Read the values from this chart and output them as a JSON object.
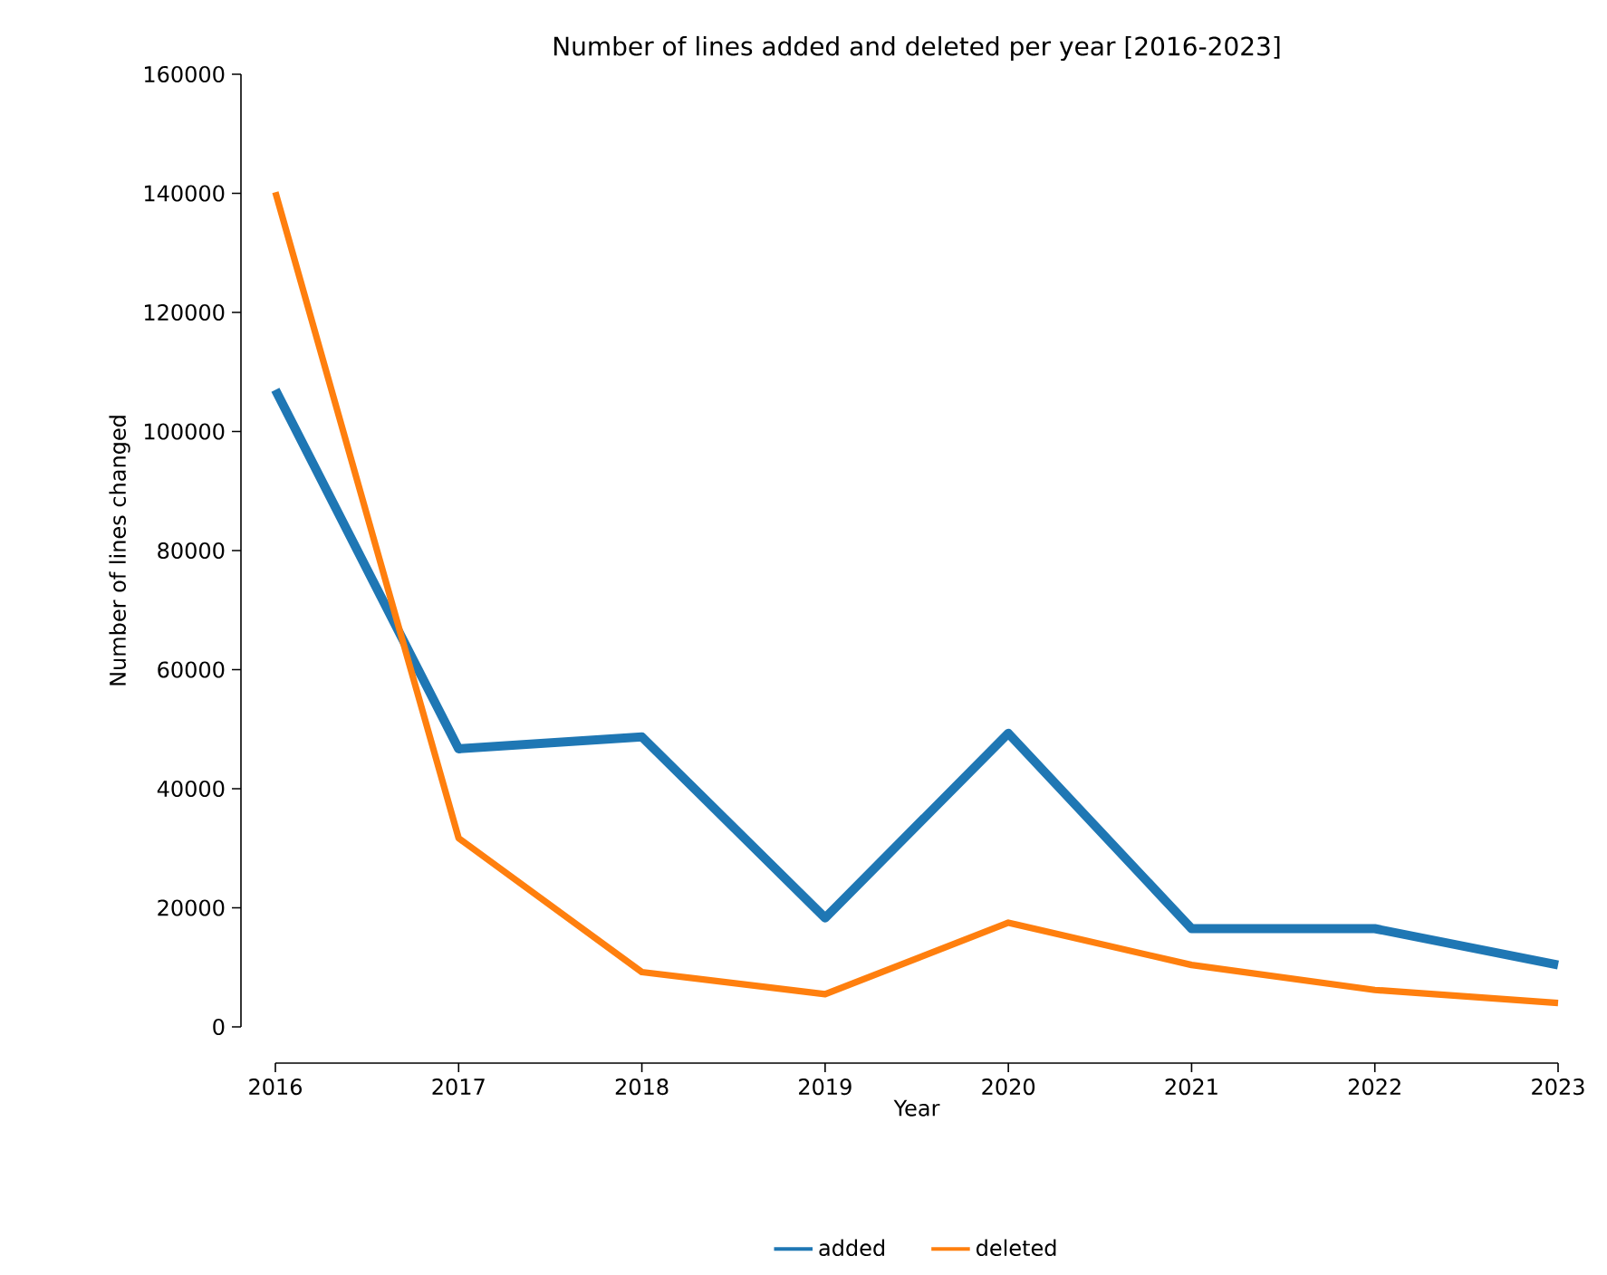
{
  "chart_data": {
    "type": "line",
    "title": "Number of lines added and deleted per year [2016-2023]",
    "xlabel": "Year",
    "ylabel": "Number of lines changed",
    "x": [
      2016,
      2017,
      2018,
      2019,
      2020,
      2021,
      2022,
      2023
    ],
    "series": [
      {
        "name": "added",
        "color": "#1f77b4",
        "values": [
          107000,
          46700,
          48700,
          18300,
          49300,
          16500,
          16500,
          10400
        ]
      },
      {
        "name": "deleted",
        "color": "#ff7f0e",
        "values": [
          140200,
          31700,
          9200,
          5500,
          17500,
          10400,
          6200,
          4000
        ]
      }
    ],
    "xlim": [
      2016,
      2023
    ],
    "xticks": [
      2016,
      2017,
      2018,
      2019,
      2020,
      2021,
      2022,
      2023
    ],
    "ylim": [
      0,
      160000
    ],
    "yticks": [
      0,
      20000,
      40000,
      60000,
      80000,
      100000,
      120000,
      140000,
      160000
    ],
    "legend": "bottom",
    "grid": false,
    "marker": "none",
    "line_style": "solid"
  }
}
